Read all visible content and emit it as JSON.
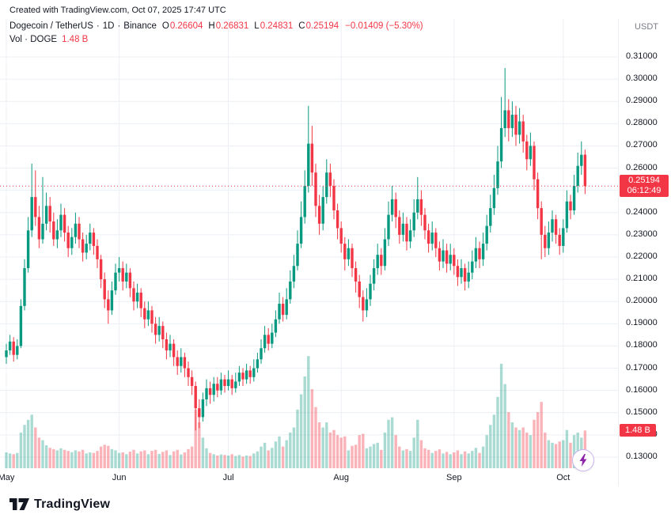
{
  "attribution": "Created with TradingView.com, Oct 07, 2025 17:47 UTC",
  "header": {
    "symbol_title": "Dogecoin / TetherUS",
    "interval": "1D",
    "exchange": "Binance",
    "separator": "·",
    "ohlc": {
      "o_label": "O",
      "o": "0.26604",
      "h_label": "H",
      "h": "0.26831",
      "l_label": "L",
      "l": "0.24831",
      "c_label": "C",
      "c": "0.25194",
      "change": "−0.01409 (−5.30%)"
    },
    "volume_row": {
      "label": "Vol · DOGE",
      "value": "1.48 B"
    }
  },
  "price_scale": {
    "currency_label": "USDT",
    "ticks": [
      "0.31000",
      "0.30000",
      "0.29000",
      "0.28000",
      "0.27000",
      "0.26000",
      "0.25000",
      "0.24000",
      "0.23000",
      "0.22000",
      "0.21000",
      "0.20000",
      "0.19000",
      "0.18000",
      "0.17000",
      "0.16000",
      "0.15000",
      "0.14000",
      "0.13000"
    ],
    "last_price_badge": {
      "price": "0.25194",
      "countdown": "06:12:49"
    },
    "volume_badge": "1.48 B"
  },
  "footer": {
    "brand": "TradingView"
  },
  "colors": {
    "up": "#089981",
    "down": "#F23645",
    "volume_up": "rgba(8,153,129,0.35)",
    "volume_down": "rgba(242,54,69,0.38)",
    "last_price": "#F23645",
    "badge_bg": "#F23645",
    "grid": "#ECEFF4",
    "axis_text": "#131722",
    "muted_text": "#787B86",
    "accent_purple": "#8E24AA"
  },
  "chart_data": {
    "type": "candlestick_with_volume",
    "title": "Dogecoin / TetherUS · 1D · Binance",
    "symbol": "DOGEUSDT",
    "exchange": "Binance",
    "interval": "1D",
    "start_date": "2025-05-01",
    "end_date": "2025-10-07",
    "last_price": 0.25194,
    "last_change": -0.01409,
    "last_change_pct": -5.3,
    "last_volume_billions": 1.48,
    "price_axis": {
      "min": 0.13,
      "max": 0.31,
      "tick_step": 0.01,
      "currency": "USDT"
    },
    "volume_axis_max_billions": 4.5,
    "layout_hints": {
      "grid": true,
      "legend_position": "top-left",
      "price_scale_position": "right",
      "volume_pane": "overlay-bottom"
    },
    "month_ticks": [
      {
        "label": "May",
        "candle_index": 0
      },
      {
        "label": "Jun",
        "candle_index": 31
      },
      {
        "label": "Jul",
        "candle_index": 61
      },
      {
        "label": "Aug",
        "candle_index": 92
      },
      {
        "label": "Sep",
        "candle_index": 123
      },
      {
        "label": "Oct",
        "candle_index": 153
      }
    ],
    "columns": [
      "open",
      "high",
      "low",
      "close",
      "volume_billions"
    ],
    "candles": [
      [
        0.175,
        0.181,
        0.172,
        0.178,
        0.62
      ],
      [
        0.178,
        0.185,
        0.176,
        0.182,
        0.58
      ],
      [
        0.182,
        0.184,
        0.173,
        0.176,
        0.55
      ],
      [
        0.176,
        0.183,
        0.174,
        0.18,
        0.6
      ],
      [
        0.18,
        0.201,
        0.179,
        0.198,
        1.4
      ],
      [
        0.198,
        0.219,
        0.196,
        0.215,
        1.7
      ],
      [
        0.215,
        0.238,
        0.213,
        0.232,
        1.9
      ],
      [
        0.232,
        0.262,
        0.229,
        0.247,
        2.1
      ],
      [
        0.247,
        0.259,
        0.234,
        0.238,
        1.6
      ],
      [
        0.238,
        0.243,
        0.224,
        0.228,
        1.2
      ],
      [
        0.228,
        0.256,
        0.226,
        0.235,
        1.1
      ],
      [
        0.235,
        0.249,
        0.232,
        0.243,
        0.9
      ],
      [
        0.243,
        0.247,
        0.231,
        0.236,
        0.8
      ],
      [
        0.236,
        0.24,
        0.225,
        0.228,
        0.75
      ],
      [
        0.228,
        0.237,
        0.224,
        0.232,
        0.7
      ],
      [
        0.232,
        0.244,
        0.229,
        0.239,
        0.78
      ],
      [
        0.239,
        0.242,
        0.227,
        0.231,
        0.72
      ],
      [
        0.231,
        0.234,
        0.22,
        0.224,
        0.68
      ],
      [
        0.224,
        0.233,
        0.221,
        0.229,
        0.63
      ],
      [
        0.229,
        0.24,
        0.226,
        0.235,
        0.7
      ],
      [
        0.235,
        0.238,
        0.224,
        0.228,
        0.66
      ],
      [
        0.228,
        0.231,
        0.218,
        0.222,
        0.72
      ],
      [
        0.222,
        0.23,
        0.219,
        0.226,
        0.58
      ],
      [
        0.226,
        0.235,
        0.223,
        0.231,
        0.62
      ],
      [
        0.231,
        0.233,
        0.221,
        0.225,
        0.6
      ],
      [
        0.225,
        0.228,
        0.215,
        0.219,
        0.68
      ],
      [
        0.219,
        0.221,
        0.206,
        0.21,
        0.85
      ],
      [
        0.21,
        0.213,
        0.197,
        0.201,
        0.92
      ],
      [
        0.201,
        0.205,
        0.19,
        0.196,
        0.88
      ],
      [
        0.196,
        0.209,
        0.194,
        0.205,
        0.75
      ],
      [
        0.205,
        0.217,
        0.203,
        0.213,
        0.7
      ],
      [
        0.213,
        0.22,
        0.209,
        0.215,
        0.6
      ],
      [
        0.215,
        0.218,
        0.205,
        0.209,
        0.62
      ],
      [
        0.209,
        0.217,
        0.206,
        0.213,
        0.55
      ],
      [
        0.213,
        0.215,
        0.202,
        0.206,
        0.65
      ],
      [
        0.206,
        0.209,
        0.196,
        0.2,
        0.72
      ],
      [
        0.2,
        0.208,
        0.197,
        0.204,
        0.58
      ],
      [
        0.204,
        0.206,
        0.193,
        0.197,
        0.66
      ],
      [
        0.197,
        0.2,
        0.188,
        0.192,
        0.7
      ],
      [
        0.192,
        0.2,
        0.189,
        0.196,
        0.55
      ],
      [
        0.196,
        0.198,
        0.186,
        0.19,
        0.68
      ],
      [
        0.19,
        0.193,
        0.181,
        0.185,
        0.72
      ],
      [
        0.185,
        0.193,
        0.182,
        0.189,
        0.56
      ],
      [
        0.189,
        0.191,
        0.179,
        0.183,
        0.64
      ],
      [
        0.183,
        0.186,
        0.174,
        0.178,
        0.7
      ],
      [
        0.178,
        0.185,
        0.175,
        0.181,
        0.52
      ],
      [
        0.181,
        0.183,
        0.171,
        0.175,
        0.66
      ],
      [
        0.175,
        0.178,
        0.167,
        0.171,
        0.72
      ],
      [
        0.171,
        0.179,
        0.168,
        0.175,
        0.54
      ],
      [
        0.175,
        0.177,
        0.166,
        0.17,
        0.62
      ],
      [
        0.17,
        0.173,
        0.162,
        0.166,
        0.75
      ],
      [
        0.166,
        0.169,
        0.158,
        0.162,
        0.85
      ],
      [
        0.162,
        0.164,
        0.142,
        0.152,
        2.3
      ],
      [
        0.152,
        0.156,
        0.143,
        0.148,
        1.8
      ],
      [
        0.148,
        0.159,
        0.146,
        0.156,
        1.2
      ],
      [
        0.156,
        0.165,
        0.153,
        0.161,
        0.78
      ],
      [
        0.161,
        0.164,
        0.154,
        0.158,
        0.6
      ],
      [
        0.158,
        0.166,
        0.155,
        0.163,
        0.55
      ],
      [
        0.163,
        0.166,
        0.157,
        0.16,
        0.5
      ],
      [
        0.16,
        0.168,
        0.158,
        0.165,
        0.54
      ],
      [
        0.165,
        0.167,
        0.159,
        0.162,
        0.52
      ],
      [
        0.162,
        0.169,
        0.16,
        0.165,
        0.5
      ],
      [
        0.165,
        0.167,
        0.158,
        0.161,
        0.55
      ],
      [
        0.161,
        0.168,
        0.159,
        0.164,
        0.48
      ],
      [
        0.164,
        0.171,
        0.162,
        0.168,
        0.52
      ],
      [
        0.168,
        0.17,
        0.162,
        0.165,
        0.46
      ],
      [
        0.165,
        0.172,
        0.163,
        0.169,
        0.5
      ],
      [
        0.169,
        0.171,
        0.163,
        0.166,
        0.48
      ],
      [
        0.166,
        0.174,
        0.164,
        0.17,
        0.58
      ],
      [
        0.17,
        0.177,
        0.168,
        0.174,
        0.66
      ],
      [
        0.174,
        0.183,
        0.172,
        0.179,
        0.85
      ],
      [
        0.179,
        0.189,
        0.177,
        0.185,
        1.0
      ],
      [
        0.185,
        0.188,
        0.178,
        0.181,
        0.7
      ],
      [
        0.181,
        0.19,
        0.179,
        0.186,
        0.8
      ],
      [
        0.186,
        0.196,
        0.184,
        0.192,
        1.05
      ],
      [
        0.192,
        0.204,
        0.19,
        0.199,
        1.25
      ],
      [
        0.199,
        0.202,
        0.191,
        0.194,
        0.85
      ],
      [
        0.194,
        0.206,
        0.192,
        0.201,
        1.1
      ],
      [
        0.201,
        0.214,
        0.199,
        0.209,
        1.4
      ],
      [
        0.209,
        0.221,
        0.206,
        0.216,
        1.6
      ],
      [
        0.216,
        0.232,
        0.214,
        0.226,
        2.3
      ],
      [
        0.226,
        0.245,
        0.224,
        0.238,
        2.9
      ],
      [
        0.238,
        0.259,
        0.235,
        0.252,
        3.6
      ],
      [
        0.252,
        0.288,
        0.249,
        0.271,
        4.4
      ],
      [
        0.271,
        0.279,
        0.252,
        0.258,
        3.1
      ],
      [
        0.258,
        0.262,
        0.238,
        0.243,
        2.4
      ],
      [
        0.243,
        0.248,
        0.23,
        0.235,
        1.8
      ],
      [
        0.235,
        0.252,
        0.232,
        0.247,
        1.6
      ],
      [
        0.247,
        0.264,
        0.244,
        0.258,
        1.8
      ],
      [
        0.258,
        0.262,
        0.247,
        0.252,
        1.4
      ],
      [
        0.252,
        0.255,
        0.237,
        0.241,
        1.5
      ],
      [
        0.241,
        0.244,
        0.228,
        0.233,
        1.3
      ],
      [
        0.233,
        0.236,
        0.222,
        0.226,
        1.2
      ],
      [
        0.226,
        0.229,
        0.214,
        0.219,
        1.25
      ],
      [
        0.219,
        0.228,
        0.216,
        0.224,
        0.7
      ],
      [
        0.224,
        0.226,
        0.211,
        0.215,
        0.88
      ],
      [
        0.215,
        0.218,
        0.204,
        0.209,
        0.92
      ],
      [
        0.209,
        0.212,
        0.197,
        0.202,
        1.3
      ],
      [
        0.202,
        0.205,
        0.191,
        0.196,
        1.35
      ],
      [
        0.196,
        0.206,
        0.193,
        0.201,
        0.78
      ],
      [
        0.201,
        0.212,
        0.198,
        0.208,
        0.85
      ],
      [
        0.208,
        0.219,
        0.205,
        0.215,
        0.95
      ],
      [
        0.215,
        0.226,
        0.212,
        0.221,
        1.0
      ],
      [
        0.221,
        0.224,
        0.212,
        0.216,
        0.72
      ],
      [
        0.216,
        0.233,
        0.214,
        0.228,
        1.4
      ],
      [
        0.228,
        0.245,
        0.225,
        0.239,
        1.9
      ],
      [
        0.239,
        0.252,
        0.236,
        0.246,
        2.0
      ],
      [
        0.246,
        0.249,
        0.233,
        0.238,
        1.3
      ],
      [
        0.238,
        0.241,
        0.226,
        0.23,
        0.85
      ],
      [
        0.23,
        0.24,
        0.227,
        0.235,
        0.7
      ],
      [
        0.235,
        0.238,
        0.223,
        0.227,
        0.75
      ],
      [
        0.227,
        0.237,
        0.224,
        0.232,
        0.68
      ],
      [
        0.232,
        0.246,
        0.229,
        0.24,
        1.2
      ],
      [
        0.24,
        0.256,
        0.237,
        0.246,
        1.9
      ],
      [
        0.246,
        0.25,
        0.234,
        0.239,
        1.1
      ],
      [
        0.239,
        0.242,
        0.228,
        0.232,
        0.78
      ],
      [
        0.232,
        0.235,
        0.222,
        0.226,
        0.72
      ],
      [
        0.226,
        0.236,
        0.223,
        0.231,
        0.6
      ],
      [
        0.231,
        0.233,
        0.22,
        0.224,
        0.68
      ],
      [
        0.224,
        0.227,
        0.214,
        0.218,
        0.74
      ],
      [
        0.218,
        0.228,
        0.215,
        0.223,
        0.58
      ],
      [
        0.223,
        0.226,
        0.213,
        0.217,
        0.64
      ],
      [
        0.217,
        0.226,
        0.214,
        0.221,
        0.55
      ],
      [
        0.221,
        0.224,
        0.212,
        0.216,
        0.62
      ],
      [
        0.216,
        0.219,
        0.207,
        0.211,
        0.7
      ],
      [
        0.211,
        0.219,
        0.208,
        0.215,
        0.55
      ],
      [
        0.215,
        0.217,
        0.205,
        0.209,
        0.66
      ],
      [
        0.209,
        0.218,
        0.206,
        0.213,
        0.58
      ],
      [
        0.213,
        0.223,
        0.21,
        0.218,
        0.68
      ],
      [
        0.218,
        0.229,
        0.215,
        0.224,
        0.8
      ],
      [
        0.224,
        0.227,
        0.215,
        0.219,
        0.6
      ],
      [
        0.219,
        0.231,
        0.216,
        0.226,
        0.85
      ],
      [
        0.226,
        0.239,
        0.223,
        0.234,
        1.3
      ],
      [
        0.234,
        0.248,
        0.231,
        0.242,
        1.7
      ],
      [
        0.242,
        0.257,
        0.239,
        0.251,
        2.1
      ],
      [
        0.251,
        0.27,
        0.248,
        0.263,
        2.8
      ],
      [
        0.263,
        0.292,
        0.26,
        0.278,
        4.1
      ],
      [
        0.278,
        0.305,
        0.274,
        0.286,
        3.3
      ],
      [
        0.286,
        0.291,
        0.272,
        0.278,
        2.2
      ],
      [
        0.278,
        0.29,
        0.274,
        0.284,
        1.8
      ],
      [
        0.284,
        0.288,
        0.27,
        0.275,
        1.6
      ],
      [
        0.275,
        0.287,
        0.271,
        0.281,
        1.5
      ],
      [
        0.281,
        0.284,
        0.267,
        0.272,
        1.6
      ],
      [
        0.272,
        0.275,
        0.259,
        0.264,
        1.4
      ],
      [
        0.264,
        0.276,
        0.261,
        0.27,
        1.3
      ],
      [
        0.27,
        0.272,
        0.25,
        0.255,
        1.9
      ],
      [
        0.255,
        0.258,
        0.237,
        0.242,
        2.2
      ],
      [
        0.242,
        0.245,
        0.219,
        0.23,
        2.6
      ],
      [
        0.23,
        0.234,
        0.22,
        0.224,
        1.4
      ],
      [
        0.224,
        0.236,
        0.221,
        0.231,
        1.1
      ],
      [
        0.231,
        0.241,
        0.227,
        0.237,
        1.0
      ],
      [
        0.237,
        0.239,
        0.226,
        0.23,
        0.95
      ],
      [
        0.23,
        0.233,
        0.221,
        0.225,
        1.05
      ],
      [
        0.225,
        0.237,
        0.222,
        0.233,
        1.1
      ],
      [
        0.233,
        0.25,
        0.231,
        0.245,
        1.5
      ],
      [
        0.245,
        0.248,
        0.237,
        0.241,
        1.0
      ],
      [
        0.241,
        0.257,
        0.239,
        0.252,
        1.3
      ],
      [
        0.252,
        0.267,
        0.249,
        0.261,
        1.4
      ],
      [
        0.261,
        0.272,
        0.257,
        0.266,
        1.2
      ],
      [
        0.26604,
        0.26831,
        0.24831,
        0.25194,
        1.48
      ]
    ]
  }
}
